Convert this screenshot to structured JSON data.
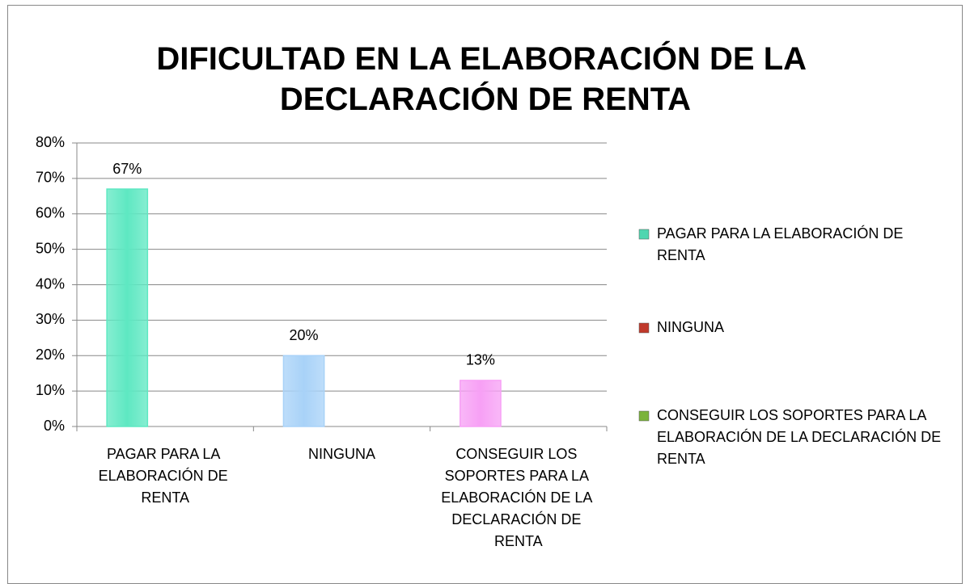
{
  "chart_data": {
    "type": "bar",
    "title": "DIFICULTAD EN LA ELABORACIÓN  DE LA DECLARACIÓN DE RENTA",
    "categories": [
      "PAGAR PARA LA ELABORACIÓN DE RENTA",
      "NINGUNA",
      "CONSEGUIR LOS SOPORTES PARA LA ELABORACIÓN DE LA DECLARACIÓN DE RENTA"
    ],
    "values": [
      67,
      20,
      13
    ],
    "value_labels": [
      "67%",
      "20%",
      "13%"
    ],
    "colors": [
      "#5ee8c2",
      "#a8d2f8",
      "#f7a0f5"
    ],
    "legend_colors": [
      "#4fd6b0",
      "#c0392b",
      "#7ab33a"
    ],
    "legend": "right",
    "ylim": [
      0,
      80
    ],
    "yticks": [
      {
        "value": 0,
        "label": "0%"
      },
      {
        "value": 10,
        "label": "10%"
      },
      {
        "value": 20,
        "label": "20%"
      },
      {
        "value": 30,
        "label": "30%"
      },
      {
        "value": 40,
        "label": "40%"
      },
      {
        "value": 50,
        "label": "50%"
      },
      {
        "value": 60,
        "label": "60%"
      },
      {
        "value": 70,
        "label": "70%"
      },
      {
        "value": 80,
        "label": "80%"
      }
    ],
    "grid": true
  }
}
